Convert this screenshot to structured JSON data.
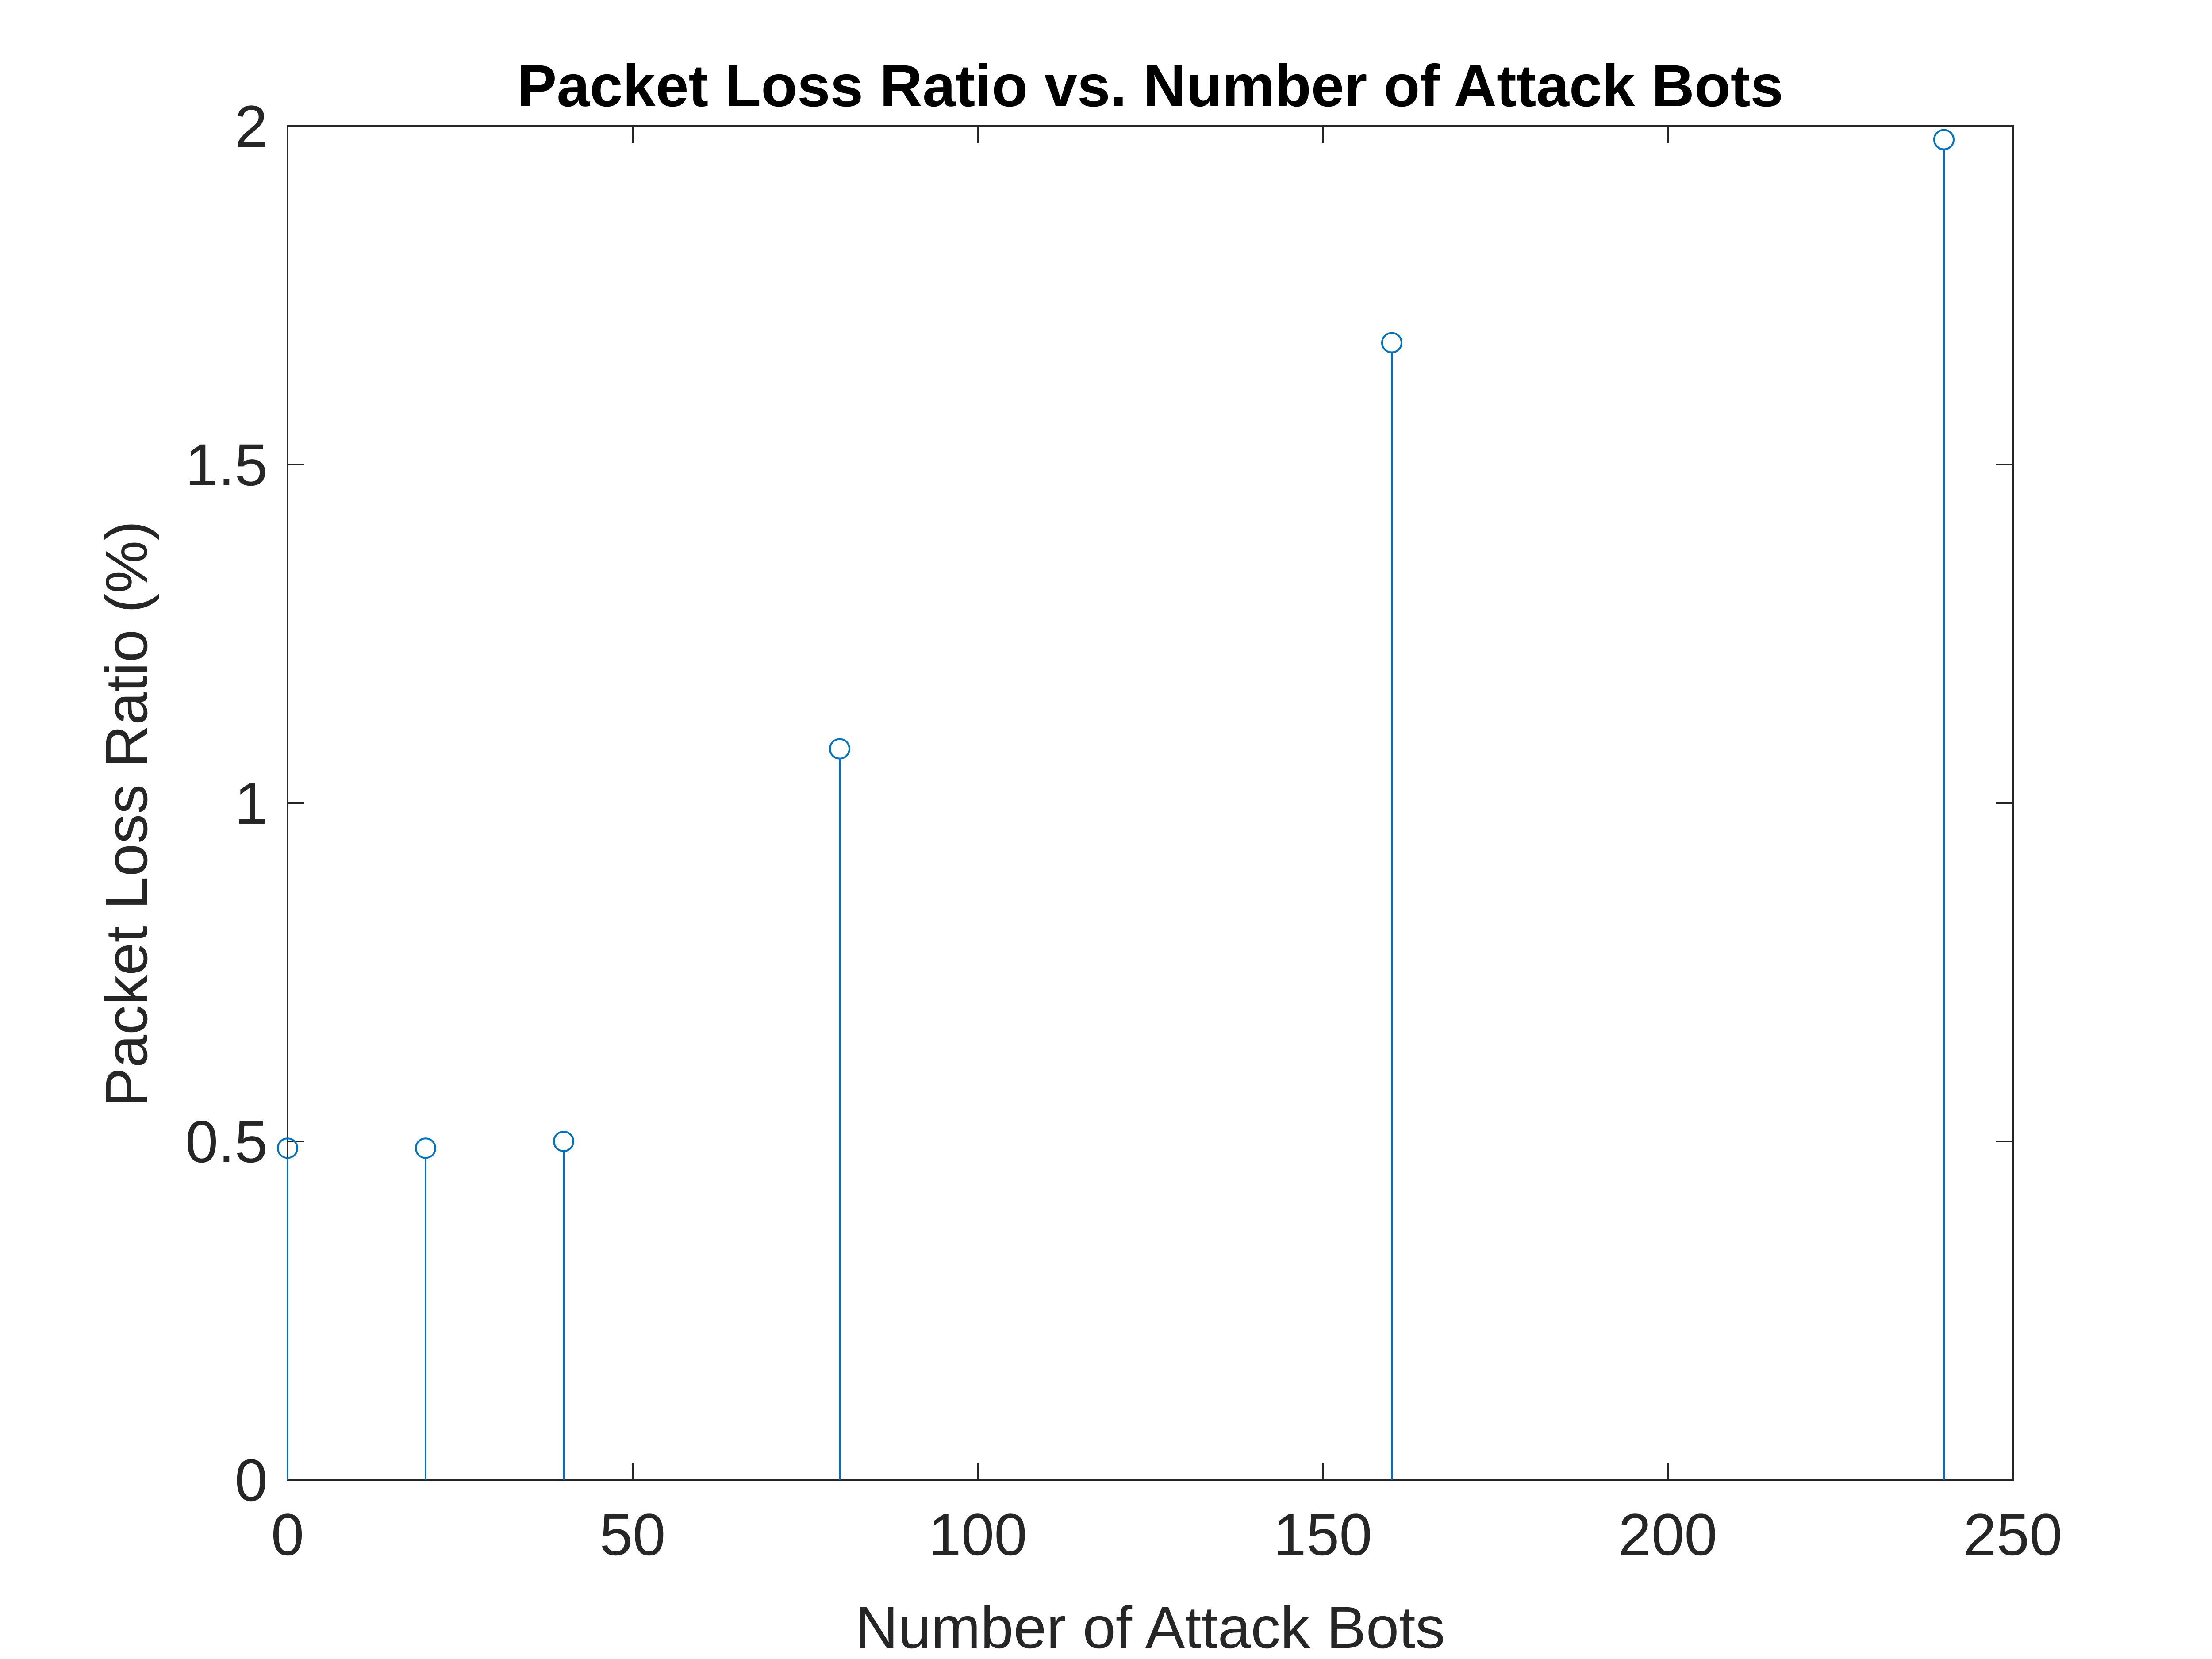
{
  "chart_data": {
    "type": "stem",
    "title": "Packet Loss Ratio vs. Number of Attack Bots",
    "xlabel": "Number of Attack Bots",
    "ylabel": "Packet Loss Ratio (%)",
    "xlim": [
      0,
      250
    ],
    "ylim": [
      0,
      2
    ],
    "xticks": [
      "0",
      "50",
      "100",
      "150",
      "200",
      "250"
    ],
    "yticks": [
      "0",
      "0.5",
      "1",
      "1.5",
      "2"
    ],
    "xtick_values": [
      0,
      50,
      100,
      150,
      200,
      250
    ],
    "ytick_values": [
      0,
      0.5,
      1,
      1.5,
      2
    ],
    "grid": false,
    "series": [
      {
        "color": "#0072BD",
        "marker": "circle-open",
        "x": [
          0,
          20,
          40,
          80,
          160,
          240
        ],
        "y": [
          0.49,
          0.49,
          0.5,
          1.08,
          1.68,
          1.98
        ]
      }
    ]
  },
  "colors": {
    "axis": "#262626",
    "stem": "#0072BD",
    "background": "#ffffff"
  }
}
